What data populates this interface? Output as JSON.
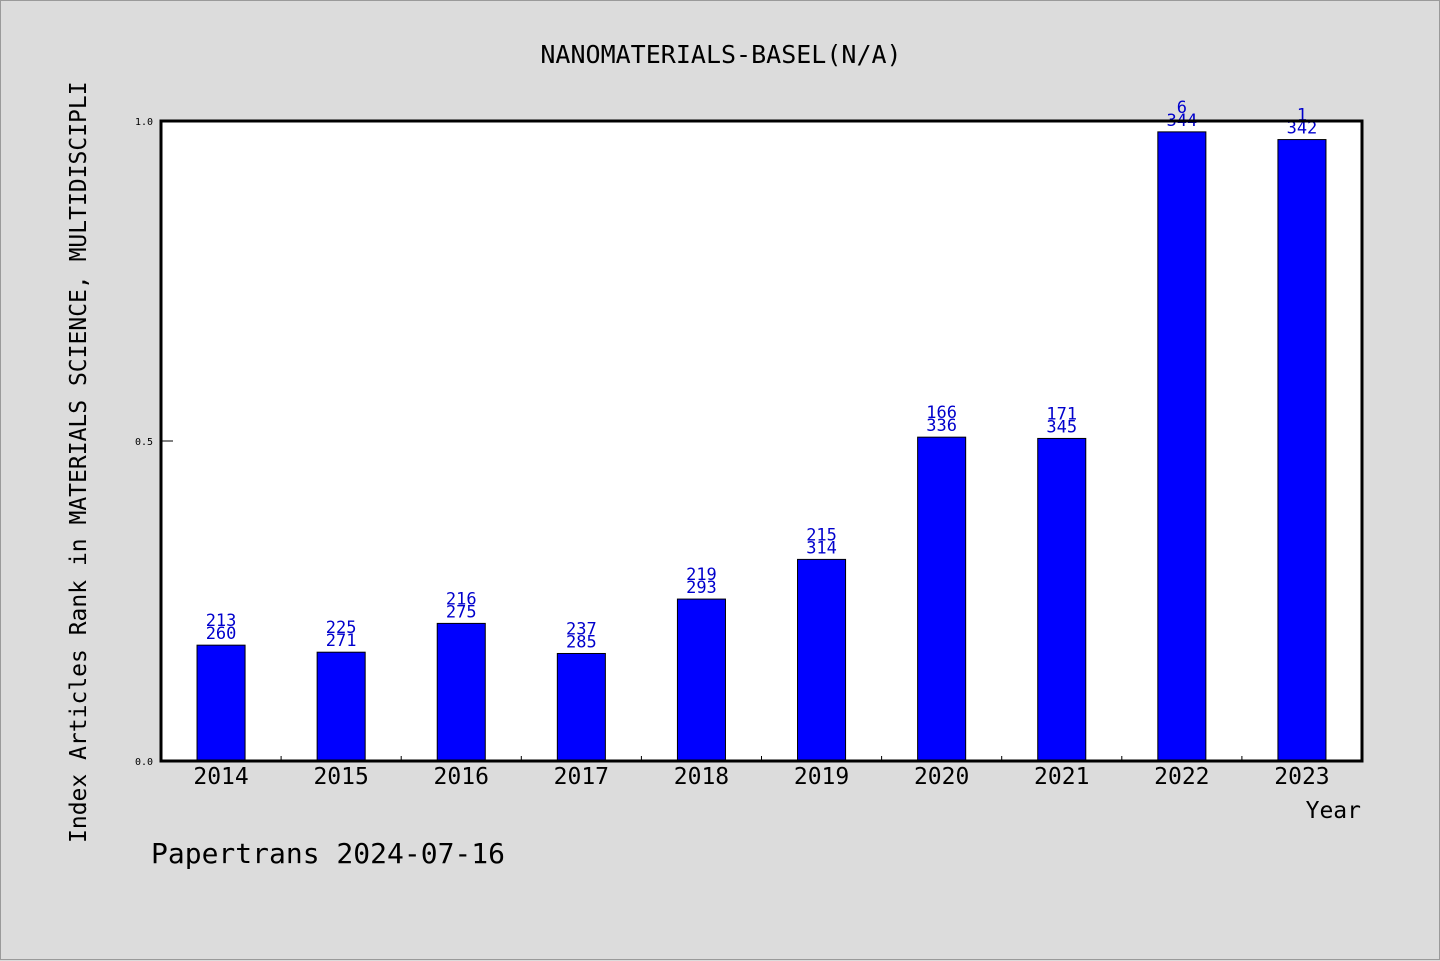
{
  "chart_data": {
    "type": "bar",
    "title": "NANOMATERIALS-BASEL(N/A)",
    "xlabel": "Year",
    "ylabel": "Index Articles Rank in MATERIALS SCIENCE, MULTIDISCIPLI",
    "ylim": [
      0,
      1
    ],
    "yticks": [
      "0.0",
      "0.5",
      "1.0"
    ],
    "grid": false,
    "legend": "none",
    "categories": [
      "2014",
      "2015",
      "2016",
      "2017",
      "2018",
      "2019",
      "2020",
      "2021",
      "2022",
      "2023"
    ],
    "values": [
      0.181,
      0.17,
      0.215,
      0.168,
      0.253,
      0.315,
      0.506,
      0.504,
      0.983,
      0.971
    ],
    "label_top": [
      "213",
      "225",
      "216",
      "237",
      "219",
      "215",
      "166",
      "171",
      "6",
      "1"
    ],
    "label_bottom": [
      "260",
      "271",
      "275",
      "285",
      "293",
      "314",
      "336",
      "345",
      "344",
      "342"
    ],
    "bar_color": "#0000ff",
    "label_color": "#0000cc"
  },
  "footer": "Papertrans 2024-07-16"
}
